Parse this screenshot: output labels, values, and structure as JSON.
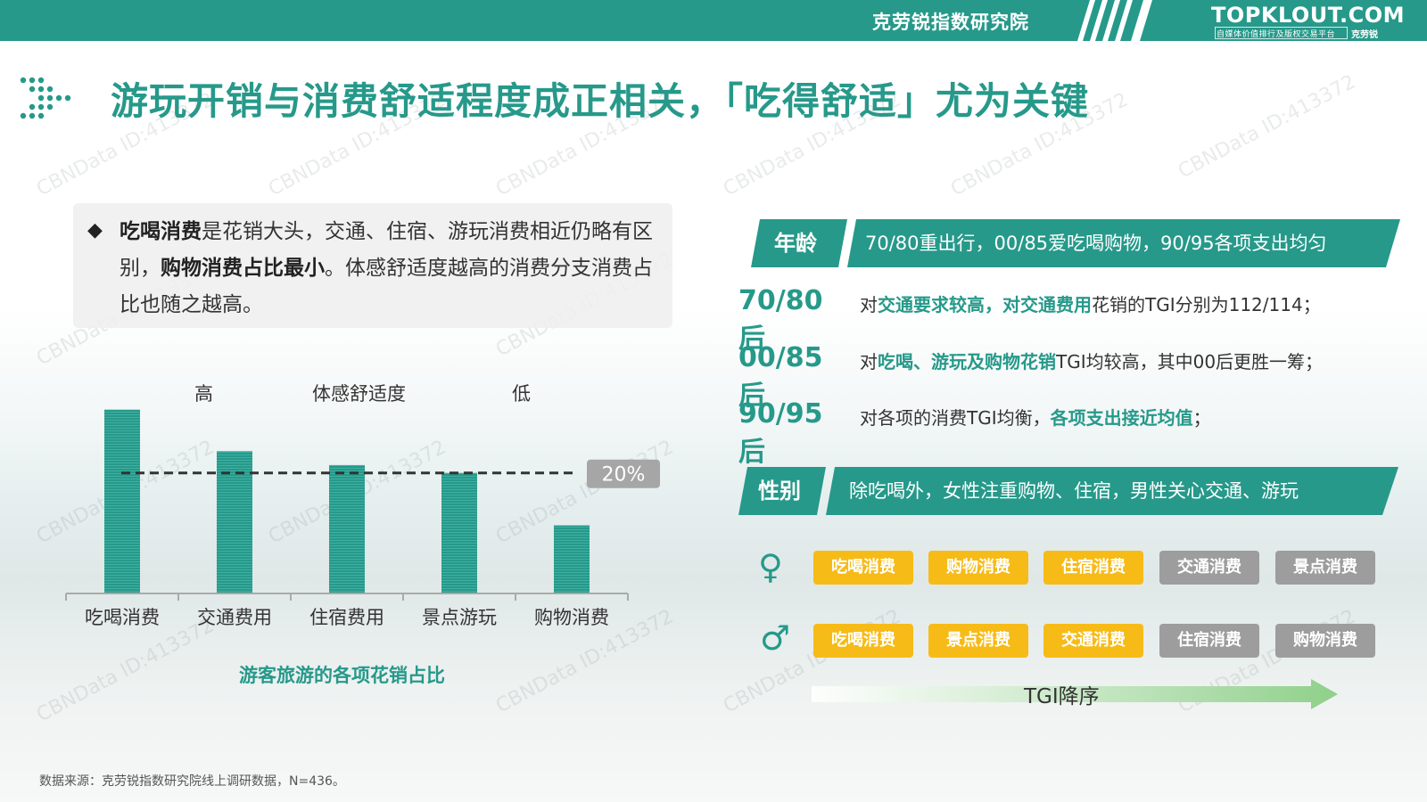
{
  "header": {
    "org": "克劳锐指数研究院",
    "brand": "TOPKLOUT.COM",
    "brand_sub": "自媒体价值排行及版权交易平台",
    "brand_cn": "克劳锐"
  },
  "title": "游玩开销与消费舒适程度成正相关，「吃得舒适」尤为关键",
  "watermark_text": "CBNData ID:413372",
  "note": {
    "bullet": "◆",
    "bold1": "吃喝消费",
    "text1": "是花销大头，交通、住宿、游玩消费相近仍略有区别，",
    "bold2": "购物消费占比最小",
    "text2": "。体感舒适度越高的消费分支消费占比也随之越高。"
  },
  "chart_data": {
    "type": "bar",
    "categories": [
      "吃喝消费",
      "交通费用",
      "住宿费用",
      "景点游玩",
      "购物消费"
    ],
    "values": [
      30.5,
      23.6,
      21.3,
      20.0,
      11.3
    ],
    "reference_line": {
      "value": 20,
      "label": "20%"
    },
    "comfort_axis": {
      "high": "高",
      "title": "体感舒适度",
      "low": "低"
    },
    "caption": "游客旅游的各项花销占比",
    "ylim": [
      0,
      34
    ],
    "colors": {
      "bar": "#26998a",
      "axis": "#aaaaaa",
      "refline": "#333333",
      "ref_badge": "#a6a6a6"
    }
  },
  "right": {
    "age": {
      "tag": "年龄",
      "summary": "70/80重出行，00/85爱吃喝购物，90/95各项支出均匀",
      "rows": [
        {
          "age": "70/80后",
          "pre": "对",
          "hl1": "交通要求较高，对交通费用",
          "post": "花销的TGI分别为112/114；"
        },
        {
          "age": "00/85后",
          "pre": "对",
          "hl1": "吃喝、游玩及购物花销",
          "post": "TGI均较高，其中00后更胜一筹；"
        },
        {
          "age": "90/95后",
          "pre": "对各项的消费TGI均衡，",
          "hl1": "各项支出接近均值",
          "post": "；"
        }
      ]
    },
    "gender": {
      "tag": "性别",
      "summary": "除吃喝外，女性注重购物、住宿，男性关心交通、游玩",
      "female": [
        "吃喝消费",
        "购物消费",
        "住宿消费",
        "交通消费",
        "景点消费"
      ],
      "male": [
        "吃喝消费",
        "景点消费",
        "交通消费",
        "住宿消费",
        "购物消费"
      ],
      "female_icon": "♀",
      "male_icon": "♂",
      "tgi_label": "TGI降序"
    }
  },
  "source": "数据来源：克劳锐指数研究院线上调研数据，N=436。",
  "colors": {
    "accent": "#26998a",
    "yellow": "#f7bb17",
    "gray": "#9d9d9d"
  }
}
